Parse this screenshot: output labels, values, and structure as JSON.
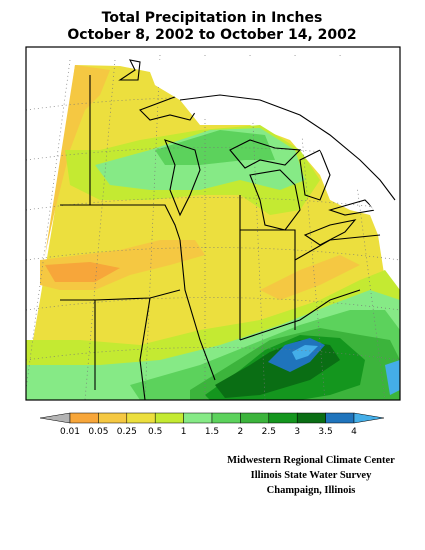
{
  "header": {
    "title_line1": "Total Precipitation in Inches",
    "title_line2": "October 8, 2002 to October 14, 2002"
  },
  "legend": {
    "labels": [
      "0.01",
      "0.05",
      "0.25",
      "0.5",
      "1",
      "1.5",
      "2",
      "2.5",
      "3",
      "3.5",
      "4"
    ],
    "colors": [
      "#b4b4b4",
      "#f7a63a",
      "#f5c842",
      "#ecdf3e",
      "#c4ea32",
      "#86ea86",
      "#5cd25c",
      "#3cb43c",
      "#14961e",
      "#0a6e14",
      "#1f74bc",
      "#44aee8"
    ]
  },
  "credits": {
    "line1": "Midwestern Regional Climate Center",
    "line2": "Illinois State Water Survey",
    "line3": "Champaign, Illinois"
  }
}
